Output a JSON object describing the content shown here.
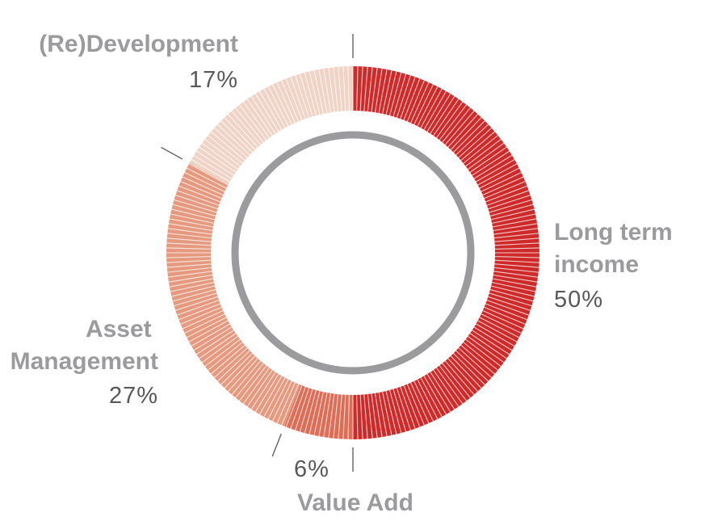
{
  "chart_data": {
    "type": "pie",
    "style": "donut",
    "categories": [
      "Long term income",
      "Value Add",
      "Asset Management",
      "(Re)Development"
    ],
    "values": [
      50,
      6,
      27,
      17
    ],
    "value_labels": [
      "50%",
      "6%",
      "27%",
      "17%"
    ],
    "label_lines": [
      [
        "Long term",
        "income"
      ],
      [
        "Value Add"
      ],
      [
        "Asset",
        "Management"
      ],
      [
        "(Re)Development"
      ]
    ],
    "colors": [
      "#cf2a2a",
      "#dc6e57",
      "#e59a80",
      "#f0d3c7"
    ],
    "inner_ring_color": "#9b9b9d",
    "separator_color": "#ffffff",
    "leader_line_color": "#58585a",
    "start_angle": "top",
    "direction": "clockwise"
  }
}
